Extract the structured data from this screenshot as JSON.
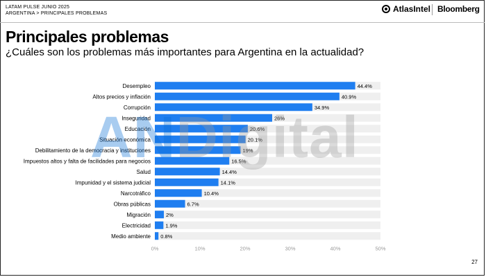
{
  "header": {
    "line1": "LATAM PULSE JUNIO 2025",
    "line2": "ARGENTINA > PRINCIPALES PROBLEMAS",
    "brand_left": "AtlasIntel",
    "brand_right": "Bloomberg"
  },
  "watermark": {
    "part1": "AN",
    "part2": "Digital"
  },
  "page_number": "27",
  "chart_data": {
    "type": "bar",
    "orientation": "horizontal",
    "title": "Principales problemas",
    "subtitle": "¿Cuáles son los problemas más importantes para Argentina en la actualidad?",
    "categories": [
      "Desempleo",
      "Altos precios y inflación",
      "Corrupción",
      "Inseguridad",
      "Educación",
      "Situación económica",
      "Debilitamiento de la democracia y instituciones",
      "Impuestos altos y falta de facilidades para negocios",
      "Salud",
      "Impunidad y el sistema judicial",
      "Narcotráfico",
      "Obras públicas",
      "Migración",
      "Electricidad",
      "Medio ambiente"
    ],
    "values": [
      44.4,
      40.9,
      34.9,
      26,
      20.6,
      20.1,
      19,
      16.5,
      14.4,
      14.1,
      10.4,
      6.7,
      2,
      1.9,
      0.8
    ],
    "value_labels": [
      "44.4%",
      "40.9%",
      "34.9%",
      "26%",
      "20.6%",
      "20.1%",
      "19%",
      "16.5%",
      "14.4%",
      "14.1%",
      "10.4%",
      "6.7%",
      "2%",
      "1.9%",
      "0.8%"
    ],
    "xlim": [
      0,
      50
    ],
    "x_ticks": [
      "0%",
      "10%",
      "20%",
      "30%",
      "40%",
      "50%"
    ],
    "bar_color": "#1f7ef0",
    "track_color": "#efefef",
    "grid": false
  }
}
